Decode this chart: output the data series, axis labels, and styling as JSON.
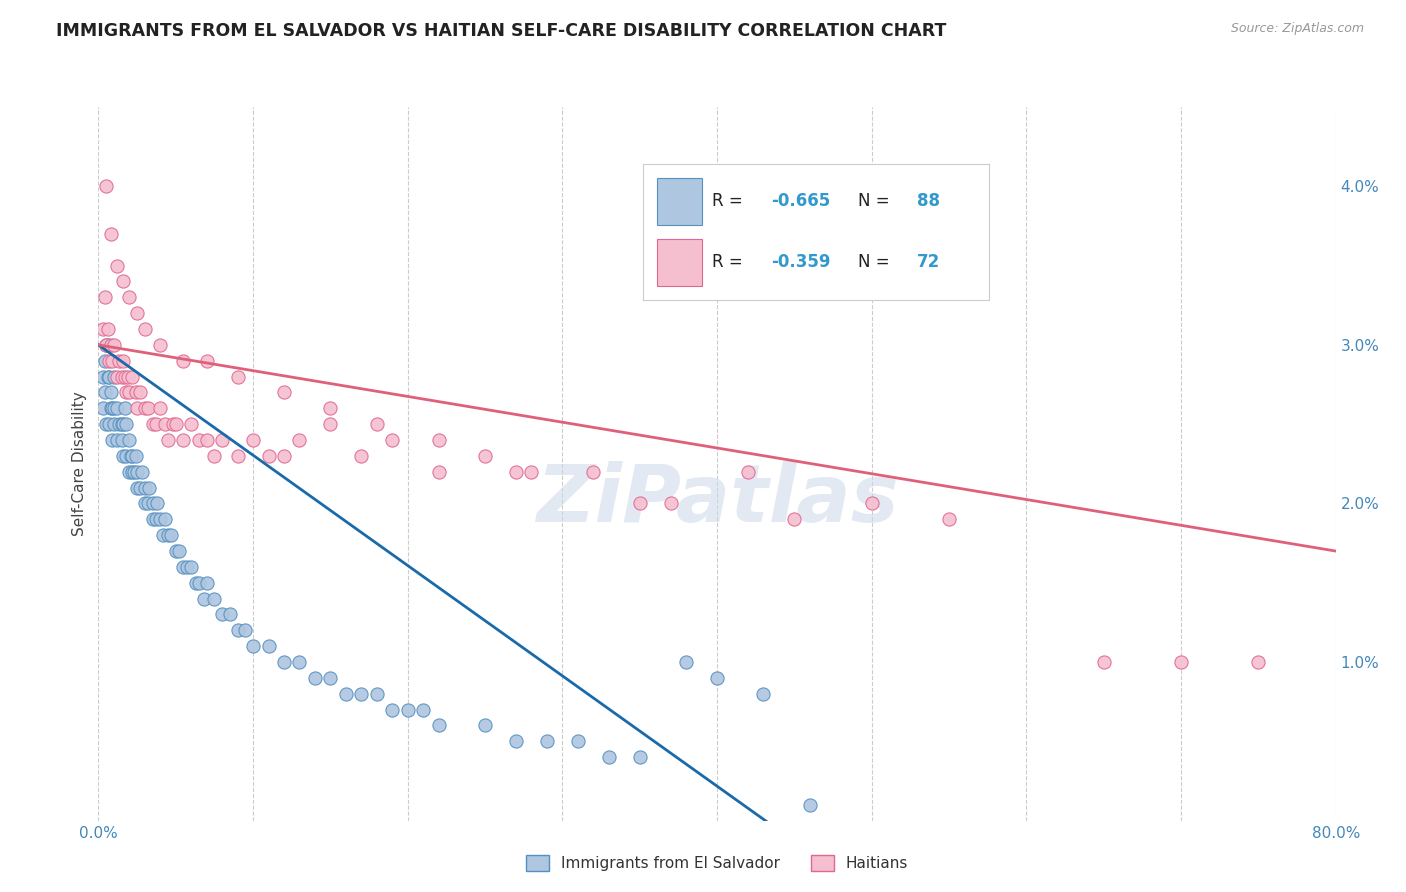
{
  "title": "IMMIGRANTS FROM EL SALVADOR VS HAITIAN SELF-CARE DISABILITY CORRELATION CHART",
  "source": "Source: ZipAtlas.com",
  "ylabel": "Self-Care Disability",
  "xlim": [
    0.0,
    0.8
  ],
  "ylim": [
    0.0,
    0.045
  ],
  "blue_color": "#aec6e0",
  "blue_edge_color": "#5590c0",
  "pink_color": "#f5bfd0",
  "pink_edge_color": "#e06890",
  "blue_line_color": "#1a6aaa",
  "pink_line_color": "#e0607a",
  "R_blue": -0.665,
  "N_blue": 88,
  "R_pink": -0.359,
  "N_pink": 72,
  "watermark": "ZiPatlas",
  "legend_label_blue": "Immigrants from El Salvador",
  "legend_label_pink": "Haitians",
  "accent_color": "#3399cc",
  "blue_scatter_x": [
    0.003,
    0.003,
    0.004,
    0.004,
    0.005,
    0.005,
    0.006,
    0.006,
    0.007,
    0.007,
    0.008,
    0.008,
    0.009,
    0.009,
    0.01,
    0.01,
    0.01,
    0.012,
    0.012,
    0.013,
    0.015,
    0.015,
    0.016,
    0.016,
    0.017,
    0.018,
    0.018,
    0.02,
    0.02,
    0.021,
    0.022,
    0.022,
    0.023,
    0.024,
    0.025,
    0.025,
    0.027,
    0.028,
    0.03,
    0.03,
    0.032,
    0.033,
    0.035,
    0.035,
    0.037,
    0.038,
    0.04,
    0.042,
    0.043,
    0.045,
    0.047,
    0.05,
    0.052,
    0.055,
    0.057,
    0.06,
    0.063,
    0.065,
    0.068,
    0.07,
    0.075,
    0.08,
    0.085,
    0.09,
    0.095,
    0.1,
    0.11,
    0.12,
    0.13,
    0.14,
    0.15,
    0.16,
    0.17,
    0.18,
    0.19,
    0.2,
    0.21,
    0.22,
    0.25,
    0.27,
    0.29,
    0.31,
    0.33,
    0.35,
    0.38,
    0.4,
    0.43,
    0.46
  ],
  "blue_scatter_y": [
    0.026,
    0.028,
    0.027,
    0.029,
    0.025,
    0.03,
    0.028,
    0.03,
    0.025,
    0.028,
    0.026,
    0.027,
    0.024,
    0.026,
    0.025,
    0.026,
    0.028,
    0.024,
    0.026,
    0.025,
    0.024,
    0.025,
    0.023,
    0.025,
    0.026,
    0.023,
    0.025,
    0.022,
    0.024,
    0.023,
    0.022,
    0.023,
    0.022,
    0.023,
    0.021,
    0.022,
    0.021,
    0.022,
    0.02,
    0.021,
    0.02,
    0.021,
    0.019,
    0.02,
    0.019,
    0.02,
    0.019,
    0.018,
    0.019,
    0.018,
    0.018,
    0.017,
    0.017,
    0.016,
    0.016,
    0.016,
    0.015,
    0.015,
    0.014,
    0.015,
    0.014,
    0.013,
    0.013,
    0.012,
    0.012,
    0.011,
    0.011,
    0.01,
    0.01,
    0.009,
    0.009,
    0.008,
    0.008,
    0.008,
    0.007,
    0.007,
    0.007,
    0.006,
    0.006,
    0.005,
    0.005,
    0.005,
    0.004,
    0.004,
    0.01,
    0.009,
    0.008,
    0.001
  ],
  "pink_scatter_x": [
    0.003,
    0.004,
    0.005,
    0.006,
    0.007,
    0.008,
    0.009,
    0.01,
    0.012,
    0.013,
    0.015,
    0.016,
    0.017,
    0.018,
    0.019,
    0.02,
    0.022,
    0.024,
    0.025,
    0.027,
    0.03,
    0.032,
    0.035,
    0.037,
    0.04,
    0.043,
    0.045,
    0.048,
    0.05,
    0.055,
    0.06,
    0.065,
    0.07,
    0.075,
    0.08,
    0.09,
    0.1,
    0.11,
    0.12,
    0.13,
    0.15,
    0.17,
    0.19,
    0.22,
    0.25,
    0.28,
    0.32,
    0.37,
    0.42,
    0.5,
    0.005,
    0.008,
    0.012,
    0.016,
    0.02,
    0.025,
    0.03,
    0.04,
    0.055,
    0.07,
    0.09,
    0.12,
    0.15,
    0.18,
    0.22,
    0.27,
    0.35,
    0.45,
    0.55,
    0.65,
    0.7,
    0.75
  ],
  "pink_scatter_y": [
    0.031,
    0.033,
    0.03,
    0.031,
    0.029,
    0.03,
    0.029,
    0.03,
    0.028,
    0.029,
    0.028,
    0.029,
    0.028,
    0.027,
    0.028,
    0.027,
    0.028,
    0.027,
    0.026,
    0.027,
    0.026,
    0.026,
    0.025,
    0.025,
    0.026,
    0.025,
    0.024,
    0.025,
    0.025,
    0.024,
    0.025,
    0.024,
    0.024,
    0.023,
    0.024,
    0.023,
    0.024,
    0.023,
    0.023,
    0.024,
    0.025,
    0.023,
    0.024,
    0.022,
    0.023,
    0.022,
    0.022,
    0.02,
    0.022,
    0.02,
    0.04,
    0.037,
    0.035,
    0.034,
    0.033,
    0.032,
    0.031,
    0.03,
    0.029,
    0.029,
    0.028,
    0.027,
    0.026,
    0.025,
    0.024,
    0.022,
    0.02,
    0.019,
    0.019,
    0.01,
    0.01,
    0.01
  ],
  "blue_line_x": [
    0.0,
    0.46
  ],
  "blue_line_y": [
    0.03,
    -0.002
  ],
  "pink_line_x": [
    0.0,
    0.8
  ],
  "pink_line_y": [
    0.03,
    0.017
  ]
}
